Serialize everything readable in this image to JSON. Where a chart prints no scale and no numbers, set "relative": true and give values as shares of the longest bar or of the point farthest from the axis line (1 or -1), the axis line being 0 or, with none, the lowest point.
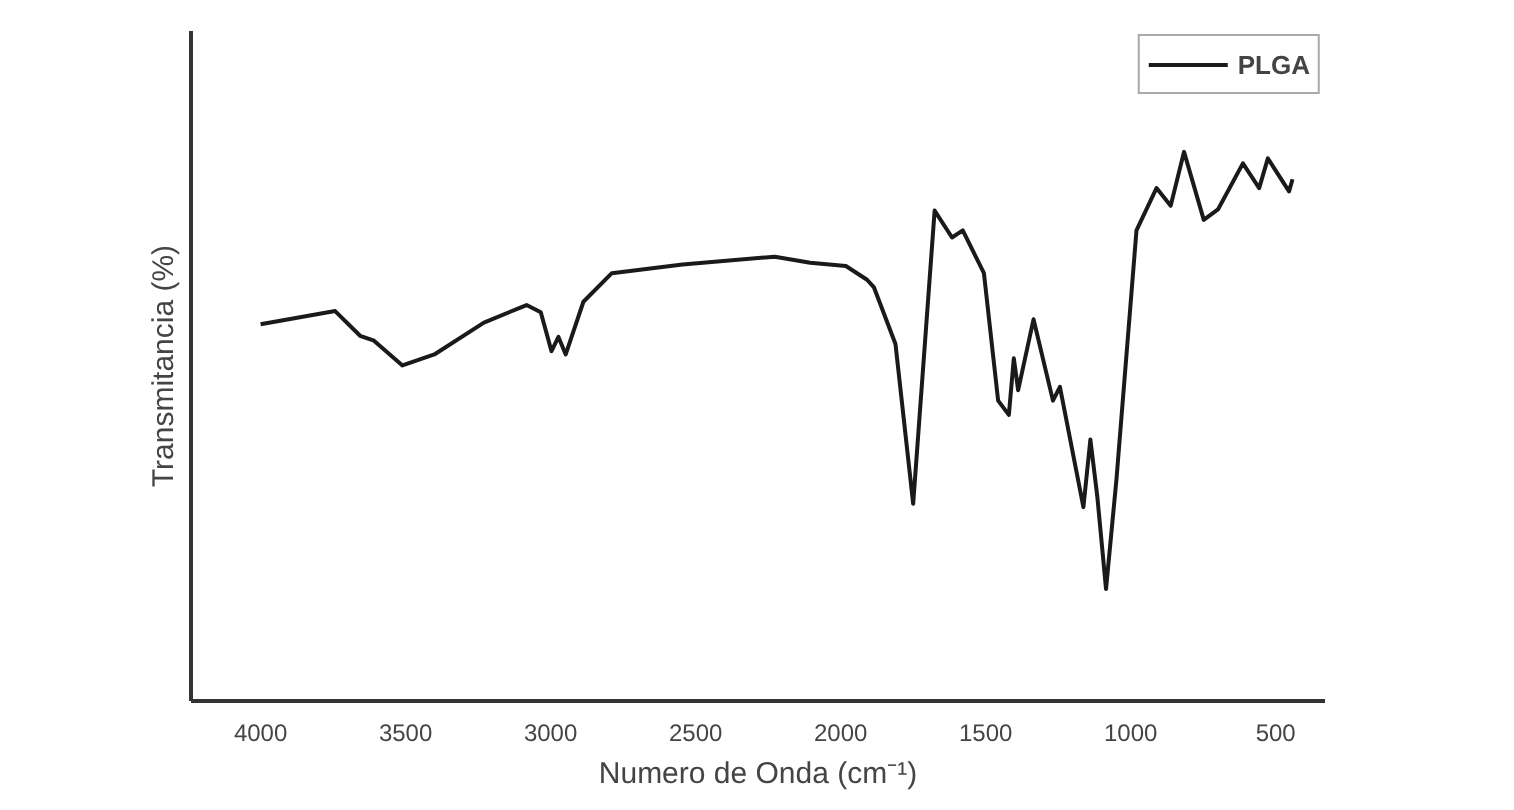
{
  "chart_data": {
    "type": "line",
    "xlabel": "Numero de Onda (cm⁻¹)",
    "ylabel": "Transmitancia (%)",
    "relative": true,
    "xlim": [
      4240,
      330
    ],
    "xticks": [
      4000,
      3500,
      3000,
      2500,
      2000,
      1500,
      1000,
      500
    ],
    "grid": false,
    "legend": "top right",
    "marker": "none",
    "line_style": "solid",
    "x": [
      4000,
      3743,
      3657,
      3609,
      3511,
      3401,
      3230,
      3083,
      3034,
      2997,
      2973,
      2948,
      2887,
      2789,
      2545,
      2227,
      2105,
      1982,
      1909,
      1885,
      1811,
      1750,
      1676,
      1616,
      1579,
      1506,
      1457,
      1420,
      1403,
      1388,
      1335,
      1268,
      1244,
      1163,
      1139,
      1115,
      1085,
      1049,
      980,
      911,
      862,
      816,
      748,
      699,
      613,
      557,
      527,
      454,
      442
    ],
    "series": [
      {
        "name": "PLGA",
        "color": "#1a1a1a",
        "values": [
          0.686,
          0.71,
          0.665,
          0.656,
          0.611,
          0.631,
          0.689,
          0.721,
          0.708,
          0.637,
          0.663,
          0.631,
          0.727,
          0.779,
          0.795,
          0.809,
          0.798,
          0.792,
          0.767,
          0.753,
          0.65,
          0.359,
          0.893,
          0.844,
          0.857,
          0.779,
          0.547,
          0.521,
          0.624,
          0.566,
          0.695,
          0.547,
          0.572,
          0.353,
          0.476,
          0.372,
          0.204,
          0.404,
          0.857,
          0.934,
          0.902,
          1.0,
          0.876,
          0.895,
          0.979,
          0.934,
          0.988,
          0.928,
          0.95
        ]
      }
    ]
  }
}
